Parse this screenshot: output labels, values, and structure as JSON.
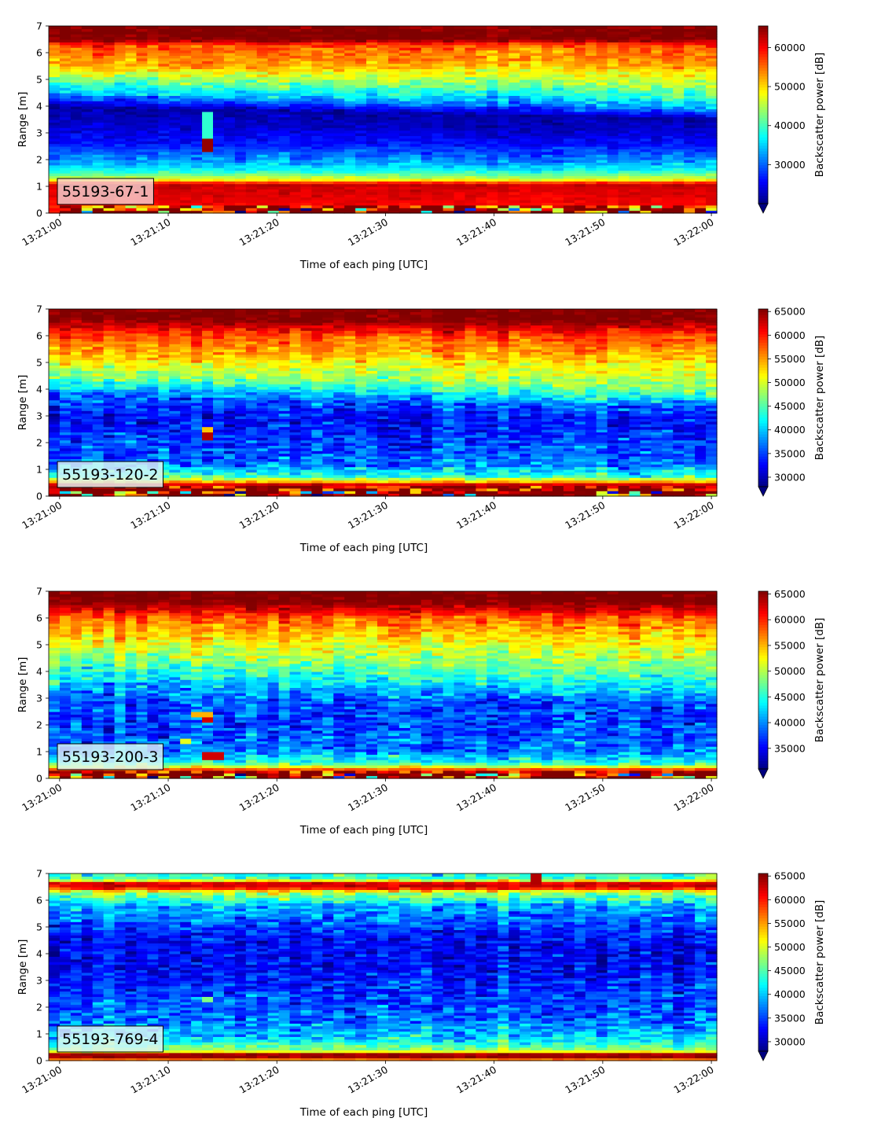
{
  "chart_data": [
    {
      "type": "heatmap",
      "label": "55193-67-1",
      "xlabel": "Time of each ping [UTC]",
      "ylabel": "Range [m]",
      "colorbar_label": "Backscatter power [dB]",
      "colormap": "jet",
      "colorbar_extend": "min",
      "x_range": [
        "13:20:59",
        "13:22:00.5"
      ],
      "x_ticks": [
        "13:21:00",
        "13:21:10",
        "13:21:20",
        "13:21:30",
        "13:21:40",
        "13:21:50",
        "13:22:00"
      ],
      "ylim": [
        0,
        7
      ],
      "y_ticks": [
        0,
        1,
        2,
        3,
        4,
        5,
        6,
        7
      ],
      "clim": [
        20000,
        65535
      ],
      "colorbar_ticks": [
        30000,
        40000,
        50000,
        60000
      ],
      "profile": [
        [
          0,
          1.1,
          0.97
        ],
        [
          0.2,
          0.95,
          0.97
        ],
        [
          0.32,
          0.88,
          0.03
        ],
        [
          1.1,
          0.93,
          0.03
        ],
        [
          1.25,
          0.62,
          0.05
        ],
        [
          1.6,
          0.38,
          0.05
        ],
        [
          2.0,
          0.26,
          0.07
        ],
        [
          2.6,
          0.14,
          0.05
        ],
        [
          3.5,
          0.06,
          0.04
        ],
        [
          4.0,
          0.04,
          0.05
        ],
        [
          4.5,
          0.3,
          0.09
        ],
        [
          5.0,
          0.5,
          0.09
        ],
        [
          5.5,
          0.7,
          0.08
        ],
        [
          6.3,
          0.8,
          0.07
        ],
        [
          6.5,
          1.0,
          0.05
        ],
        [
          7.0,
          1.0,
          0.05
        ]
      ],
      "layer_drift": [
        0,
        0.0,
        -0.5
      ],
      "layer_range": [
        2.4,
        5.4
      ],
      "hotspots": [
        [
          13.8,
          0.5,
          2.35,
          2.8,
          0.98
        ],
        [
          13.8,
          0.5,
          2.8,
          3.8,
          0.42
        ]
      ]
    },
    {
      "type": "heatmap",
      "label": "55193-120-2",
      "xlabel": "Time of each ping [UTC]",
      "ylabel": "Range [m]",
      "colorbar_label": "Backscatter power [dB]",
      "colormap": "jet",
      "colorbar_extend": "min",
      "x_range": [
        "13:20:59",
        "13:22:00.5"
      ],
      "x_ticks": [
        "13:21:00",
        "13:21:10",
        "13:21:20",
        "13:21:30",
        "13:21:40",
        "13:21:50",
        "13:22:00"
      ],
      "ylim": [
        0,
        7
      ],
      "y_ticks": [
        0,
        1,
        2,
        3,
        4,
        5,
        6,
        7
      ],
      "clim": [
        28000,
        65535
      ],
      "colorbar_ticks": [
        30000,
        35000,
        40000,
        45000,
        50000,
        55000,
        60000,
        65000
      ],
      "profile": [
        [
          0,
          1.1,
          0.97
        ],
        [
          0.12,
          1.0,
          0.97
        ],
        [
          0.42,
          0.97,
          0.04
        ],
        [
          0.55,
          0.7,
          0.06
        ],
        [
          0.75,
          0.42,
          0.1
        ],
        [
          1.2,
          0.24,
          0.12
        ],
        [
          2.0,
          0.18,
          0.12
        ],
        [
          3.0,
          0.12,
          0.1
        ],
        [
          3.8,
          0.22,
          0.12
        ],
        [
          4.5,
          0.5,
          0.1
        ],
        [
          5.2,
          0.68,
          0.08
        ],
        [
          6.0,
          0.8,
          0.07
        ],
        [
          6.6,
          1.0,
          0.05
        ],
        [
          7.0,
          1.0,
          0.05
        ]
      ],
      "layer_drift": [
        0,
        0.0,
        -0.5
      ],
      "layer_range": [
        2.5,
        5.0
      ],
      "hotspots": [
        [
          13.8,
          0.5,
          2.1,
          2.4,
          0.95
        ],
        [
          13.8,
          0.7,
          2.4,
          2.6,
          0.68
        ]
      ]
    },
    {
      "type": "heatmap",
      "label": "55193-200-3",
      "xlabel": "Time of each ping [UTC]",
      "ylabel": "Range [m]",
      "colorbar_label": "Backscatter power [dB]",
      "colormap": "jet",
      "colorbar_extend": "min",
      "x_range": [
        "13:20:59",
        "13:22:00.5"
      ],
      "x_ticks": [
        "13:21:00",
        "13:21:10",
        "13:21:20",
        "13:21:30",
        "13:21:40",
        "13:21:50",
        "13:22:00"
      ],
      "ylim": [
        0,
        7
      ],
      "y_ticks": [
        0,
        1,
        2,
        3,
        4,
        5,
        6,
        7
      ],
      "clim": [
        31000,
        65535
      ],
      "colorbar_ticks": [
        35000,
        40000,
        45000,
        50000,
        55000,
        60000,
        65000
      ],
      "profile": [
        [
          0,
          1.0,
          0.97
        ],
        [
          0.12,
          1.0,
          0.97
        ],
        [
          0.3,
          0.9,
          0.04
        ],
        [
          0.42,
          0.62,
          0.06
        ],
        [
          0.6,
          0.4,
          0.1
        ],
        [
          1.0,
          0.25,
          0.12
        ],
        [
          2.0,
          0.18,
          0.12
        ],
        [
          3.0,
          0.2,
          0.12
        ],
        [
          3.8,
          0.36,
          0.12
        ],
        [
          4.5,
          0.5,
          0.1
        ],
        [
          5.2,
          0.64,
          0.09
        ],
        [
          6.0,
          0.78,
          0.08
        ],
        [
          6.6,
          1.0,
          0.05
        ],
        [
          7.0,
          1.0,
          0.05
        ]
      ],
      "layer_drift": [
        0,
        0.0,
        -0.4
      ],
      "layer_range": [
        2.5,
        5.0
      ],
      "hotspots": [
        [
          13.8,
          0.5,
          2.1,
          2.3,
          0.92
        ],
        [
          13.8,
          0.9,
          2.3,
          2.5,
          0.7
        ],
        [
          14.5,
          0.8,
          0.75,
          0.95,
          0.92
        ],
        [
          12.0,
          0.6,
          1.3,
          1.5,
          0.6
        ]
      ]
    },
    {
      "type": "heatmap",
      "label": "55193-769-4",
      "xlabel": "Time of each ping [UTC]",
      "ylabel": "Range [m]",
      "colorbar_label": "Backscatter power [dB]",
      "colormap": "jet",
      "colorbar_extend": "min",
      "x_range": [
        "13:20:59",
        "13:22:00.5"
      ],
      "x_ticks": [
        "13:21:00",
        "13:21:10",
        "13:21:20",
        "13:21:30",
        "13:21:40",
        "13:21:50",
        "13:22:00"
      ],
      "ylim": [
        0,
        7
      ],
      "y_ticks": [
        0,
        1,
        2,
        3,
        4,
        5,
        6,
        7
      ],
      "clim": [
        28000,
        65535
      ],
      "colorbar_ticks": [
        30000,
        35000,
        40000,
        45000,
        50000,
        55000,
        60000,
        65000
      ],
      "profile": [
        [
          0,
          0.62,
          0.04
        ],
        [
          0.12,
          0.97,
          0.03
        ],
        [
          0.3,
          0.96,
          0.03
        ],
        [
          0.36,
          0.55,
          0.05
        ],
        [
          0.8,
          0.34,
          0.12
        ],
        [
          1.5,
          0.24,
          0.12
        ],
        [
          2.5,
          0.18,
          0.12
        ],
        [
          3.5,
          0.12,
          0.1
        ],
        [
          4.5,
          0.12,
          0.1
        ],
        [
          5.2,
          0.22,
          0.12
        ],
        [
          5.8,
          0.3,
          0.12
        ],
        [
          6.3,
          0.55,
          0.12
        ],
        [
          6.5,
          0.93,
          0.06
        ],
        [
          6.65,
          0.9,
          0.06
        ],
        [
          6.8,
          0.45,
          0.12
        ],
        [
          7.0,
          0.42,
          0.1
        ]
      ],
      "layer_drift": [
        0,
        0.0,
        0.0
      ],
      "layer_range": [
        0,
        0
      ],
      "hotspots": [
        [
          13.8,
          0.5,
          2.2,
          2.4,
          0.5
        ],
        [
          44,
          0.6,
          6.7,
          7.0,
          0.95
        ]
      ]
    }
  ]
}
